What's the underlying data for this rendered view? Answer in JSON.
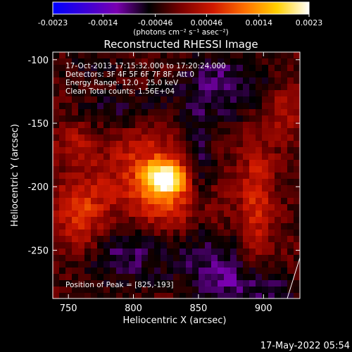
{
  "chart_data": {
    "type": "heatmap",
    "title": "Reconstructed RHESSI Image",
    "xlabel": "Heliocentric X (arcsec)",
    "ylabel": "Heliocentric Y (arcsec)",
    "xlim": [
      738,
      928
    ],
    "ylim": [
      -288,
      -94
    ],
    "x_ticks": [
      750,
      800,
      850,
      900
    ],
    "y_ticks": [
      -100,
      -150,
      -200,
      -250
    ],
    "colorbar": {
      "min": -0.0023,
      "max": 0.0023,
      "ticks": [
        "-0.0023",
        "-0.0014",
        "-0.00046",
        "0.00046",
        "0.0014",
        "0.0023"
      ],
      "units": "(photons cm⁻² s⁻¹ asec⁻²)",
      "colormap": [
        "#0000ff",
        "#3a00d8",
        "#7a00b0",
        "#000000",
        "#7a0000",
        "#d01800",
        "#ff7000",
        "#ffd000",
        "#ffffff"
      ]
    },
    "annotations": [
      "17-Oct-2013 17:15:32.000 to 17:20:24.000",
      "Detectors: 3F 4F 5F 6F 7F 8F, Att 0",
      "Energy Range: 12.0 - 25.0 keV",
      "Clean     Total counts: 1.56E+04"
    ],
    "peak_label": "Position of Peak = [825,-193]",
    "peak": {
      "x": 825,
      "y": -193
    },
    "sources": [
      {
        "x": 825,
        "y": -193,
        "sx": 11,
        "sy": 9,
        "amp": 0.0023
      },
      {
        "x": 808,
        "y": -185,
        "sx": 22,
        "sy": 28,
        "amp": 0.0008
      },
      {
        "x": 830,
        "y": -215,
        "sx": 24,
        "sy": 14,
        "amp": 0.0007
      },
      {
        "x": 760,
        "y": -225,
        "sx": 14,
        "sy": 22,
        "amp": 0.0011
      },
      {
        "x": 755,
        "y": -165,
        "sx": 10,
        "sy": 12,
        "amp": 0.0005
      },
      {
        "x": 895,
        "y": -210,
        "sx": 9,
        "sy": 35,
        "amp": 0.0008
      },
      {
        "x": 915,
        "y": -140,
        "sx": 10,
        "sy": 14,
        "amp": 0.0006
      },
      {
        "x": 795,
        "y": -140,
        "sx": 25,
        "sy": 12,
        "amp": -0.0006
      },
      {
        "x": 870,
        "y": -120,
        "sx": 25,
        "sy": 20,
        "amp": -0.0007
      },
      {
        "x": 790,
        "y": -250,
        "sx": 30,
        "sy": 20,
        "amp": -0.0007
      },
      {
        "x": 865,
        "y": -265,
        "sx": 20,
        "sy": 18,
        "amp": -0.0007
      },
      {
        "x": 850,
        "y": -185,
        "sx": 8,
        "sy": 35,
        "amp": -0.0006
      },
      {
        "x": 900,
        "y": -280,
        "sx": 20,
        "sy": 10,
        "amp": -0.0006
      },
      {
        "x": 770,
        "y": -105,
        "sx": 20,
        "sy": 10,
        "amp": -0.0003
      }
    ]
  },
  "footer": {
    "date": "17-May-2022 05:54"
  }
}
